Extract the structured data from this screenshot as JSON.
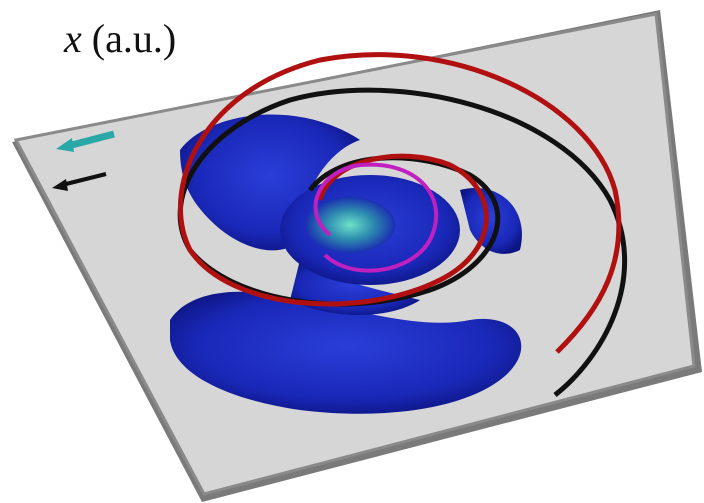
{
  "axis_label": {
    "symbol": "x",
    "unit": "(a.u.)"
  }
}
